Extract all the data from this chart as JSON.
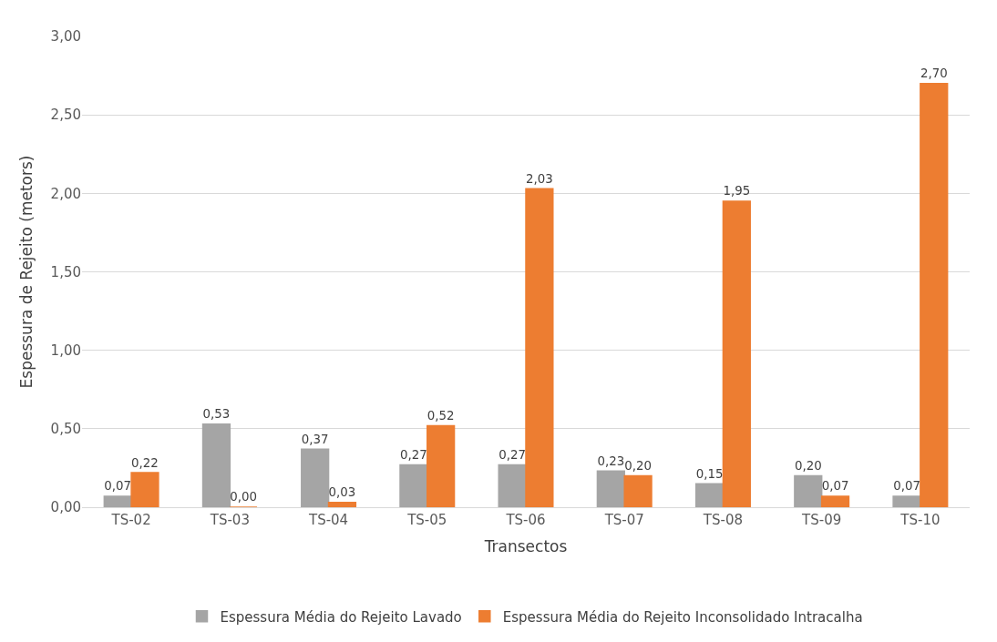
{
  "chart_data": {
    "type": "bar",
    "xlabel": "Transectos",
    "ylabel": "Espessura de Rejeito (metors)",
    "categories": [
      "TS-02",
      "TS-03",
      "TS-04",
      "TS-05",
      "TS-06",
      "TS-07",
      "TS-08",
      "TS-09",
      "TS-10"
    ],
    "series": [
      {
        "name": "Espessura Média do Rejeito Lavado",
        "color": "#a5a5a5",
        "values": [
          0.07,
          0.53,
          0.37,
          0.27,
          0.27,
          0.23,
          0.15,
          0.2,
          0.07
        ],
        "value_labels": [
          "0,07",
          "0,53",
          "0,37",
          "0,27",
          "0,27",
          "0,23",
          "0,15",
          "0,20",
          "0,07"
        ]
      },
      {
        "name": "Espessura Média do Rejeito Inconsolidado Intracalha",
        "color": "#ed7d31",
        "values": [
          0.22,
          0.0,
          0.03,
          0.52,
          2.03,
          0.2,
          1.95,
          0.07,
          2.7
        ],
        "value_labels": [
          "0,22",
          "0,00",
          "0,03",
          "0,52",
          "2,03",
          "0,20",
          "1,95",
          "0,07",
          "2,70"
        ]
      }
    ],
    "ylim": [
      0,
      3
    ],
    "yticks": [
      {
        "value": 0,
        "label": "0,00"
      },
      {
        "value": 0.5,
        "label": "0,50"
      },
      {
        "value": 1,
        "label": "1,00"
      },
      {
        "value": 1.5,
        "label": "1,50"
      },
      {
        "value": 2,
        "label": "2,00"
      },
      {
        "value": 2.5,
        "label": "2,50"
      },
      {
        "value": 3,
        "label": "3,00"
      }
    ],
    "grid": "y",
    "legend": "bottom"
  }
}
